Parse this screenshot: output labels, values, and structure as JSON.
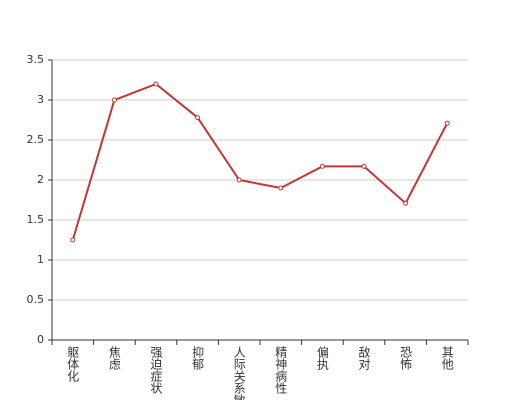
{
  "chart_data": {
    "type": "line",
    "categories": [
      "躯体化",
      "焦虑",
      "强迫症状",
      "抑郁",
      "人际关系敏感",
      "精神病性",
      "偏执",
      "敌对",
      "恐怖",
      "其他"
    ],
    "values": [
      1.25,
      3.0,
      3.2,
      2.78,
      2.0,
      1.9,
      2.17,
      2.17,
      1.71,
      2.71
    ],
    "color": "#c23531",
    "ylim": [
      0,
      3.5
    ],
    "yticks": [
      0,
      0.5,
      1,
      1.5,
      2,
      2.5,
      3,
      3.5
    ],
    "grid": true
  }
}
